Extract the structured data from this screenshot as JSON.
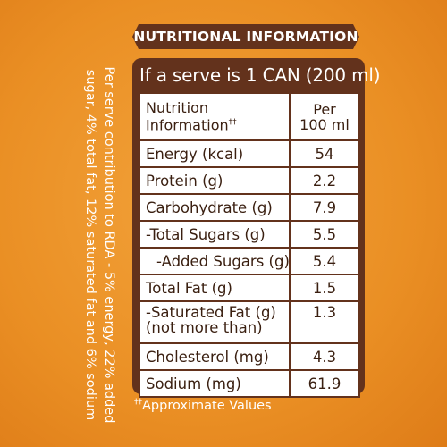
{
  "banner": "NUTRITIONAL INFORMATION",
  "side_note": {
    "line1": "Per serve contribution to RDA - 5% energy, 22% added",
    "line2": "sugar, 4% total fat, 12% saturated fat and 6% sodium"
  },
  "serve_header": "If a serve is 1 CAN (200 ml)",
  "table": {
    "col1_line1": "Nutrition",
    "col1_line2": "Information",
    "col1_mark": "††",
    "col2_line1": "Per",
    "col2_line2": "100 ml",
    "rows": [
      {
        "name": "Energy (kcal)",
        "value": "54"
      },
      {
        "name": "Protein (g)",
        "value": "2.2"
      },
      {
        "name": "Carbohydrate (g)",
        "value": "7.9"
      },
      {
        "name": "-Total Sugars (g)",
        "value": "5.5"
      },
      {
        "name": "-Added Sugars (g)",
        "value": "5.4"
      },
      {
        "name": "Total Fat (g)",
        "value": "1.5"
      },
      {
        "name": "-Saturated Fat (g)",
        "name_line2": "(not more than)",
        "value": "1.3"
      },
      {
        "name": "Cholesterol (mg)",
        "value": "4.3"
      },
      {
        "name": "Sodium (mg)",
        "value": "61.9"
      }
    ]
  },
  "footnote": {
    "mark": "††",
    "text": "Approximate Values"
  },
  "colors": {
    "background": "#ea8f24",
    "brown": "#63321c",
    "text": "#3a1f10"
  }
}
